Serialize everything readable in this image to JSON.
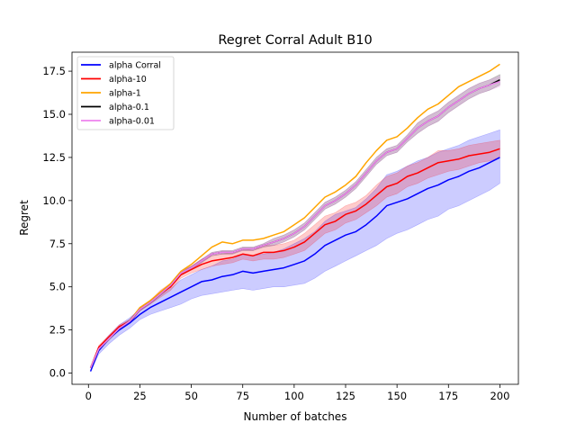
{
  "chart_data": {
    "type": "line",
    "title": "Regret Corral Adult B10",
    "xlabel": "Number of batches",
    "ylabel": "Regret",
    "xlim": [
      -8,
      209
    ],
    "ylim": [
      -0.65,
      18.6
    ],
    "xticks": [
      0,
      25,
      50,
      75,
      100,
      125,
      150,
      175,
      200
    ],
    "yticks": [
      0.0,
      2.5,
      5.0,
      7.5,
      10.0,
      12.5,
      15.0,
      17.5
    ],
    "ytick_labels": [
      "0.0",
      "2.5",
      "5.0",
      "7.5",
      "10.0",
      "12.5",
      "15.0",
      "17.5"
    ],
    "grid": false,
    "legend_position": "upper left",
    "x": [
      1,
      5,
      10,
      15,
      20,
      25,
      30,
      35,
      40,
      45,
      50,
      55,
      60,
      65,
      70,
      75,
      80,
      85,
      90,
      95,
      100,
      105,
      110,
      115,
      120,
      125,
      130,
      135,
      140,
      145,
      150,
      155,
      160,
      165,
      170,
      175,
      180,
      185,
      190,
      195,
      200
    ],
    "series": [
      {
        "name": "alpha Corral",
        "color": "#0000ff",
        "values": [
          0.1,
          1.3,
          2.0,
          2.5,
          2.9,
          3.4,
          3.8,
          4.1,
          4.4,
          4.7,
          5.0,
          5.3,
          5.4,
          5.6,
          5.7,
          5.9,
          5.8,
          5.9,
          6.0,
          6.1,
          6.3,
          6.5,
          6.9,
          7.4,
          7.7,
          8.0,
          8.2,
          8.6,
          9.1,
          9.7,
          9.9,
          10.1,
          10.4,
          10.7,
          10.9,
          11.2,
          11.4,
          11.7,
          11.9,
          12.2,
          12.5
        ],
        "lower": [
          0.1,
          1.1,
          1.7,
          2.2,
          2.6,
          3.1,
          3.4,
          3.6,
          3.8,
          4.0,
          4.3,
          4.5,
          4.6,
          4.7,
          4.8,
          4.9,
          4.8,
          4.9,
          5.0,
          5.0,
          5.1,
          5.2,
          5.5,
          5.9,
          6.2,
          6.5,
          6.8,
          7.1,
          7.4,
          7.8,
          8.1,
          8.3,
          8.6,
          8.9,
          9.1,
          9.5,
          9.7,
          10.0,
          10.3,
          10.6,
          11.0
        ],
        "upper": [
          0.1,
          1.5,
          2.2,
          2.8,
          3.2,
          3.7,
          4.1,
          4.5,
          4.9,
          5.4,
          5.7,
          6.0,
          6.2,
          6.5,
          6.6,
          6.9,
          6.8,
          6.9,
          7.0,
          7.2,
          7.5,
          7.8,
          8.2,
          8.8,
          9.2,
          9.4,
          9.6,
          10.1,
          10.7,
          11.5,
          11.7,
          12.0,
          12.3,
          12.5,
          12.8,
          13.0,
          13.2,
          13.5,
          13.7,
          13.9,
          14.1
        ]
      },
      {
        "name": "alpha-10",
        "color": "#ff0000",
        "values": [
          0.3,
          1.5,
          2.1,
          2.7,
          3.0,
          3.7,
          4.1,
          4.6,
          5.0,
          5.7,
          6.0,
          6.3,
          6.5,
          6.6,
          6.7,
          6.9,
          6.8,
          7.0,
          7.0,
          7.1,
          7.3,
          7.6,
          8.1,
          8.6,
          8.8,
          9.2,
          9.4,
          9.8,
          10.3,
          10.8,
          11.0,
          11.4,
          11.6,
          11.9,
          12.2,
          12.3,
          12.4,
          12.6,
          12.7,
          12.8,
          13.0
        ],
        "lower": [
          0.3,
          1.4,
          2.0,
          2.6,
          2.9,
          3.6,
          4.0,
          4.4,
          4.8,
          5.5,
          5.8,
          6.0,
          6.2,
          6.3,
          6.4,
          6.6,
          6.5,
          6.6,
          6.6,
          6.7,
          6.9,
          7.1,
          7.6,
          8.1,
          8.3,
          8.7,
          8.9,
          9.3,
          9.7,
          10.2,
          10.4,
          10.8,
          11.0,
          11.3,
          11.5,
          11.7,
          11.8,
          12.0,
          12.2,
          12.3,
          12.5
        ],
        "upper": [
          0.3,
          1.6,
          2.2,
          2.8,
          3.1,
          3.8,
          4.2,
          4.8,
          5.2,
          5.9,
          6.2,
          6.6,
          6.8,
          6.9,
          7.0,
          7.2,
          7.1,
          7.4,
          7.4,
          7.5,
          7.7,
          8.1,
          8.6,
          9.1,
          9.3,
          9.7,
          9.9,
          10.3,
          10.9,
          11.4,
          11.6,
          12.0,
          12.2,
          12.5,
          12.9,
          12.9,
          13.0,
          13.2,
          13.3,
          13.4,
          13.5
        ]
      },
      {
        "name": "alpha-1",
        "color": "#ffa500",
        "values": [
          0.3,
          1.4,
          2.0,
          2.6,
          3.0,
          3.8,
          4.2,
          4.7,
          5.2,
          5.9,
          6.3,
          6.8,
          7.3,
          7.6,
          7.5,
          7.7,
          7.7,
          7.8,
          8.0,
          8.2,
          8.6,
          9.0,
          9.6,
          10.2,
          10.5,
          10.9,
          11.4,
          12.2,
          12.9,
          13.5,
          13.7,
          14.2,
          14.8,
          15.3,
          15.6,
          16.1,
          16.6,
          16.9,
          17.2,
          17.5,
          17.9
        ],
        "lower": [
          0.3,
          1.4,
          2.0,
          2.6,
          3.0,
          3.8,
          4.2,
          4.7,
          5.2,
          5.9,
          6.3,
          6.8,
          7.3,
          7.6,
          7.5,
          7.7,
          7.7,
          7.8,
          8.0,
          8.2,
          8.6,
          9.0,
          9.6,
          10.2,
          10.5,
          10.9,
          11.4,
          12.2,
          12.9,
          13.5,
          13.7,
          14.2,
          14.8,
          15.3,
          15.6,
          16.1,
          16.6,
          16.9,
          17.2,
          17.5,
          17.9
        ],
        "upper": [
          0.3,
          1.4,
          2.0,
          2.6,
          3.0,
          3.8,
          4.2,
          4.7,
          5.2,
          5.9,
          6.3,
          6.8,
          7.3,
          7.6,
          7.5,
          7.7,
          7.7,
          7.8,
          8.0,
          8.2,
          8.6,
          9.0,
          9.6,
          10.2,
          10.5,
          10.9,
          11.4,
          12.2,
          12.9,
          13.5,
          13.7,
          14.2,
          14.8,
          15.3,
          15.6,
          16.1,
          16.6,
          16.9,
          17.2,
          17.5,
          17.9
        ]
      },
      {
        "name": "alpha-0.1",
        "color": "#000000",
        "values": [
          0.3,
          1.4,
          2.0,
          2.6,
          3.0,
          3.7,
          4.1,
          4.6,
          5.1,
          5.8,
          6.1,
          6.5,
          6.9,
          7.0,
          7.0,
          7.2,
          7.2,
          7.4,
          7.6,
          7.8,
          8.1,
          8.5,
          9.1,
          9.7,
          10.0,
          10.4,
          10.9,
          11.6,
          12.3,
          12.8,
          13.0,
          13.6,
          14.2,
          14.6,
          14.9,
          15.4,
          15.8,
          16.2,
          16.5,
          16.7,
          17.0
        ],
        "lower": [
          0.3,
          1.3,
          1.9,
          2.5,
          2.9,
          3.6,
          4.0,
          4.5,
          5.0,
          5.7,
          6.0,
          6.4,
          6.8,
          6.9,
          6.9,
          7.1,
          7.1,
          7.3,
          7.4,
          7.6,
          7.9,
          8.3,
          8.9,
          9.5,
          9.8,
          10.2,
          10.7,
          11.4,
          12.1,
          12.6,
          12.8,
          13.4,
          13.9,
          14.3,
          14.6,
          15.1,
          15.5,
          15.9,
          16.2,
          16.4,
          16.7
        ],
        "upper": [
          0.3,
          1.5,
          2.1,
          2.7,
          3.1,
          3.8,
          4.2,
          4.7,
          5.2,
          5.9,
          6.2,
          6.6,
          7.0,
          7.1,
          7.1,
          7.3,
          7.3,
          7.5,
          7.8,
          8.0,
          8.3,
          8.7,
          9.3,
          9.9,
          10.2,
          10.6,
          11.1,
          11.8,
          12.5,
          13.0,
          13.2,
          13.8,
          14.5,
          14.9,
          15.2,
          15.7,
          16.1,
          16.5,
          16.8,
          17.0,
          17.3
        ]
      },
      {
        "name": "alpha-0.01",
        "color": "#ee82ee",
        "values": [
          0.3,
          1.4,
          2.0,
          2.6,
          3.0,
          3.7,
          4.1,
          4.6,
          5.1,
          5.8,
          6.1,
          6.5,
          6.9,
          7.0,
          7.0,
          7.2,
          7.2,
          7.4,
          7.6,
          7.8,
          8.1,
          8.5,
          9.1,
          9.7,
          10.0,
          10.4,
          10.9,
          11.6,
          12.3,
          12.8,
          13.0,
          13.6,
          14.2,
          14.6,
          14.9,
          15.4,
          15.8,
          16.2,
          16.5,
          16.7,
          16.9
        ],
        "lower": [
          0.3,
          1.3,
          1.9,
          2.5,
          2.9,
          3.6,
          4.0,
          4.5,
          5.0,
          5.7,
          6.0,
          6.4,
          6.8,
          6.9,
          6.9,
          7.1,
          7.1,
          7.3,
          7.4,
          7.6,
          7.9,
          8.3,
          8.9,
          9.5,
          9.8,
          10.2,
          10.7,
          11.4,
          12.1,
          12.6,
          12.8,
          13.4,
          13.9,
          14.3,
          14.6,
          15.1,
          15.5,
          15.9,
          16.2,
          16.4,
          16.6
        ],
        "upper": [
          0.3,
          1.5,
          2.1,
          2.7,
          3.1,
          3.8,
          4.2,
          4.7,
          5.2,
          5.9,
          6.2,
          6.6,
          7.0,
          7.1,
          7.1,
          7.3,
          7.3,
          7.5,
          7.8,
          8.0,
          8.3,
          8.7,
          9.3,
          9.9,
          10.2,
          10.6,
          11.1,
          11.8,
          12.5,
          13.0,
          13.2,
          13.8,
          14.5,
          14.9,
          15.2,
          15.7,
          16.1,
          16.5,
          16.8,
          17.0,
          17.2
        ]
      }
    ]
  }
}
